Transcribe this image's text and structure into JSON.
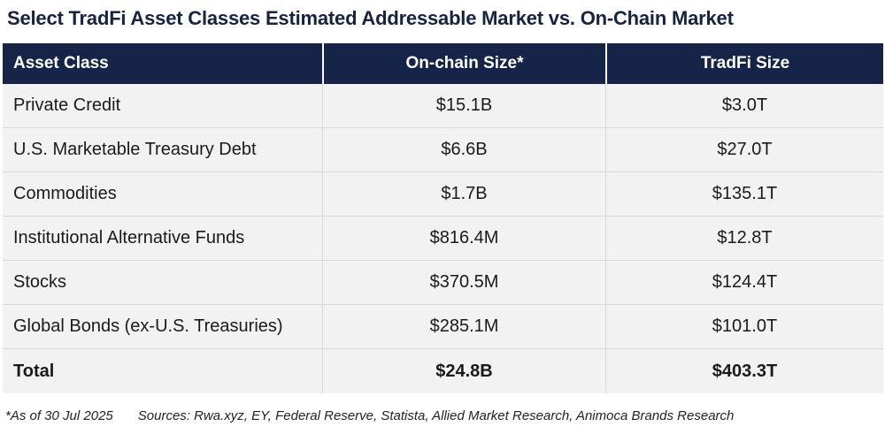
{
  "title": "Select TradFi Asset Classes Estimated Addressable Market vs. On-Chain Market",
  "chart_data": {
    "type": "table",
    "title": "Select TradFi Asset Classes Estimated Addressable Market vs. On-Chain Market",
    "columns": [
      "Asset Class",
      "On-chain Size*",
      "TradFi Size"
    ],
    "rows": [
      {
        "asset_class": "Private Credit",
        "onchain": "$15.1B",
        "tradfi": "$3.0T"
      },
      {
        "asset_class": "U.S. Marketable Treasury Debt",
        "onchain": "$6.6B",
        "tradfi": "$27.0T"
      },
      {
        "asset_class": "Commodities",
        "onchain": "$1.7B",
        "tradfi": "$135.1T"
      },
      {
        "asset_class": "Institutional Alternative Funds",
        "onchain": "$816.4M",
        "tradfi": "$12.8T"
      },
      {
        "asset_class": "Stocks",
        "onchain": "$370.5M",
        "tradfi": "$124.4T"
      },
      {
        "asset_class": "Global Bonds (ex-U.S. Treasuries)",
        "onchain": "$285.1M",
        "tradfi": "$101.0T"
      }
    ],
    "total": {
      "asset_class": "Total",
      "onchain": "$24.8B",
      "tradfi": "$403.3T"
    }
  },
  "footnote": {
    "as_of": "*As of 30 Jul 2025",
    "sources": "Sources: Rwa.xyz, EY, Federal Reserve, Statista, Allied Market Research, Animoca Brands Research"
  },
  "colors": {
    "header_bg": "#162447",
    "title": "#18233f",
    "row_bg": "#f2f2f2"
  }
}
